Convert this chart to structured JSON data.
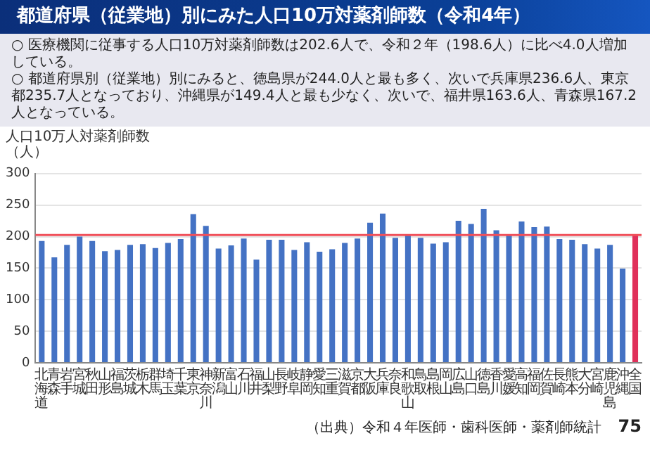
{
  "chart_data": {
    "type": "bar",
    "title": "都道府県（従業地）別にみた人口10万対薬剤師数（令和4年）",
    "ylabel": "人口10万人対薬剤師数（人）",
    "annotations": [
      "○ 医療機関に従事する人口10万対薬剤師数は202.6人で、令和２年（198.6人）に比べ4.0人増加している。",
      "○ 都道府県別（従業地）別にみると、徳島県が244.0人と最も多く、次いで兵庫県236.6人、東京都235.7人となっており、沖縄県が149.4人と最も少なく、次いで、福井県163.6人、青森県167.2人となっている。",
      "（出典）令和４年医師・歯科医師・薬剤師統計",
      "75"
    ],
    "categories": [
      "北海道",
      "青森",
      "岩手",
      "宮城",
      "秋田",
      "山形",
      "福島",
      "茨城",
      "栃木",
      "群馬",
      "埼玉",
      "千葉",
      "東京",
      "神奈川",
      "新潟",
      "富山",
      "石川",
      "福井",
      "山梨",
      "長野",
      "岐阜",
      "静岡",
      "愛知",
      "三重",
      "滋賀",
      "京都",
      "大阪",
      "兵庫",
      "奈良",
      "和歌山",
      "鳥取",
      "島根",
      "岡山",
      "広島",
      "山口",
      "徳島",
      "香川",
      "愛媛",
      "高知",
      "福岡",
      "佐賀",
      "長崎",
      "熊本",
      "大分",
      "宮崎",
      "鹿児島",
      "沖縄",
      "全国"
    ],
    "values": [
      193,
      167.2,
      187,
      200,
      193,
      177,
      179,
      187,
      188,
      182,
      190,
      196,
      235.7,
      217,
      181,
      186,
      197,
      163.6,
      195,
      195,
      179,
      191,
      176,
      180,
      190,
      197,
      222,
      236.6,
      198,
      203,
      198,
      189,
      191,
      225,
      220,
      244.0,
      210,
      203,
      224,
      215,
      216,
      196,
      195,
      188,
      181,
      187,
      149.4,
      202.6
    ],
    "colors": [
      "#4472c4",
      "#4472c4",
      "#4472c4",
      "#4472c4",
      "#4472c4",
      "#4472c4",
      "#4472c4",
      "#4472c4",
      "#4472c4",
      "#4472c4",
      "#4472c4",
      "#4472c4",
      "#4472c4",
      "#4472c4",
      "#4472c4",
      "#4472c4",
      "#4472c4",
      "#4472c4",
      "#4472c4",
      "#4472c4",
      "#4472c4",
      "#4472c4",
      "#4472c4",
      "#4472c4",
      "#4472c4",
      "#4472c4",
      "#4472c4",
      "#4472c4",
      "#4472c4",
      "#4472c4",
      "#4472c4",
      "#4472c4",
      "#4472c4",
      "#4472c4",
      "#4472c4",
      "#4472c4",
      "#4472c4",
      "#4472c4",
      "#4472c4",
      "#4472c4",
      "#4472c4",
      "#4472c4",
      "#4472c4",
      "#4472c4",
      "#4472c4",
      "#4472c4",
      "#4472c4",
      "#e0305a"
    ],
    "ylim": [
      0,
      300
    ],
    "yticks": [
      0,
      50,
      100,
      150,
      200,
      250,
      300
    ],
    "grid": "y",
    "ref_lines": [
      {
        "axis": "y",
        "value": 202.6,
        "color": "#f0505a"
      }
    ]
  }
}
